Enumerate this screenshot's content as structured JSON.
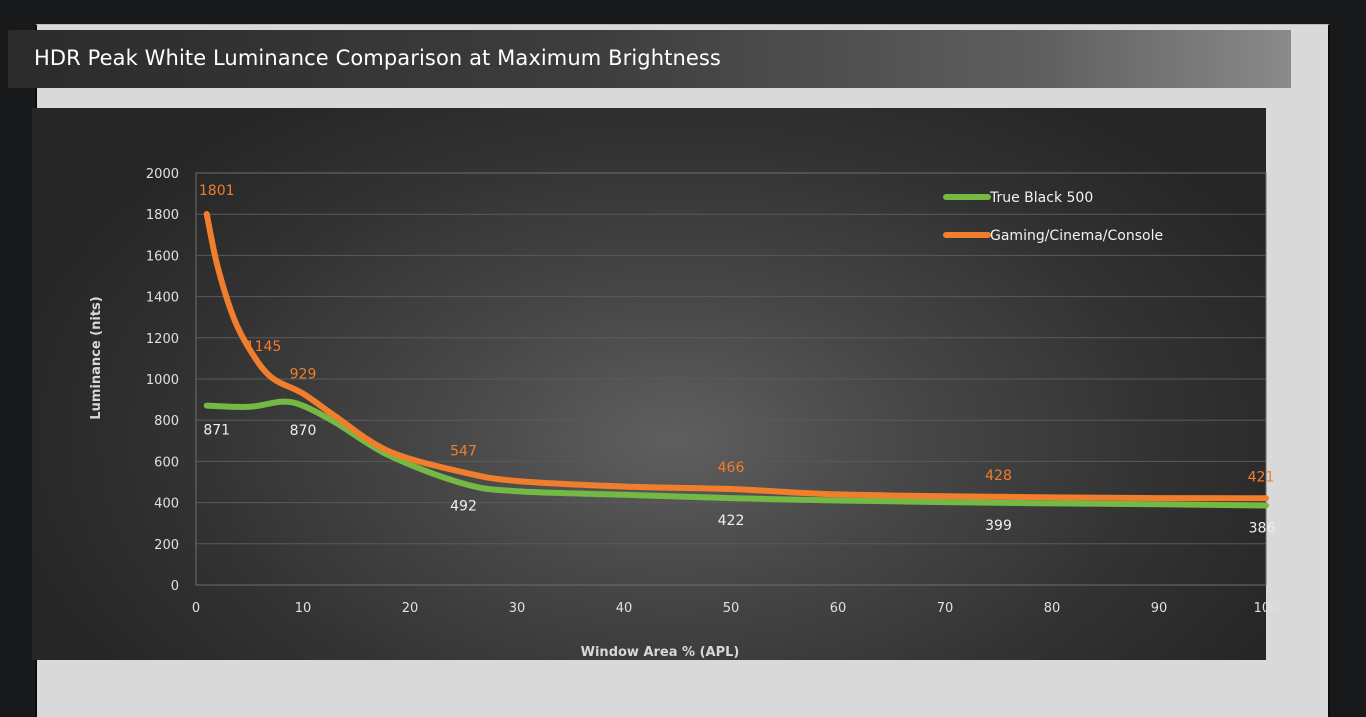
{
  "chart_data": {
    "type": "line",
    "title": "HDR Peak White Luminance Comparison at Maximum Brightness",
    "xlabel": "Window Area % (APL)",
    "ylabel": "Luminance (nits)",
    "xlim": [
      0,
      100
    ],
    "ylim": [
      0,
      2000
    ],
    "x_ticks": [
      "0",
      "10",
      "20",
      "30",
      "40",
      "50",
      "60",
      "70",
      "80",
      "90",
      "100"
    ],
    "y_ticks": [
      "0",
      "200",
      "400",
      "600",
      "800",
      "1000",
      "1200",
      "1400",
      "1600",
      "1800",
      "2000"
    ],
    "grid": "horizontal",
    "legend_position": "top-right",
    "series": [
      {
        "name": "True Black 500",
        "color": "#74b944",
        "points": [
          [
            1,
            871
          ],
          [
            5,
            865
          ],
          [
            8,
            890
          ],
          [
            10,
            870
          ],
          [
            13,
            790
          ],
          [
            18,
            630
          ],
          [
            25,
            492
          ],
          [
            30,
            455
          ],
          [
            40,
            438
          ],
          [
            50,
            422
          ],
          [
            60,
            410
          ],
          [
            75,
            399
          ],
          [
            90,
            392
          ],
          [
            100,
            386
          ]
        ],
        "labels": [
          {
            "x": 1,
            "y": 871,
            "text": "871"
          },
          {
            "x": 10,
            "y": 870,
            "text": "870"
          },
          {
            "x": 25,
            "y": 492,
            "text": "492"
          },
          {
            "x": 50,
            "y": 422,
            "text": "422"
          },
          {
            "x": 75,
            "y": 399,
            "text": "399"
          },
          {
            "x": 100,
            "y": 386,
            "text": "386"
          }
        ]
      },
      {
        "name": "Gaming/Cinema/Console",
        "color": "#f07e2c",
        "points": [
          [
            1,
            1801
          ],
          [
            2,
            1550
          ],
          [
            3.5,
            1300
          ],
          [
            5,
            1145
          ],
          [
            7,
            1010
          ],
          [
            10,
            929
          ],
          [
            13,
            820
          ],
          [
            18,
            650
          ],
          [
            25,
            547
          ],
          [
            30,
            505
          ],
          [
            40,
            478
          ],
          [
            50,
            466
          ],
          [
            60,
            440
          ],
          [
            75,
            428
          ],
          [
            90,
            422
          ],
          [
            100,
            421
          ]
        ],
        "labels": [
          {
            "x": 1,
            "y": 1801,
            "text": "1801"
          },
          {
            "x": 5,
            "y": 1145,
            "text": "1145"
          },
          {
            "x": 10,
            "y": 929,
            "text": "929"
          },
          {
            "x": 25,
            "y": 547,
            "text": "547"
          },
          {
            "x": 50,
            "y": 466,
            "text": "466"
          },
          {
            "x": 75,
            "y": 428,
            "text": "428"
          },
          {
            "x": 100,
            "y": 421,
            "text": "421"
          }
        ]
      }
    ]
  }
}
